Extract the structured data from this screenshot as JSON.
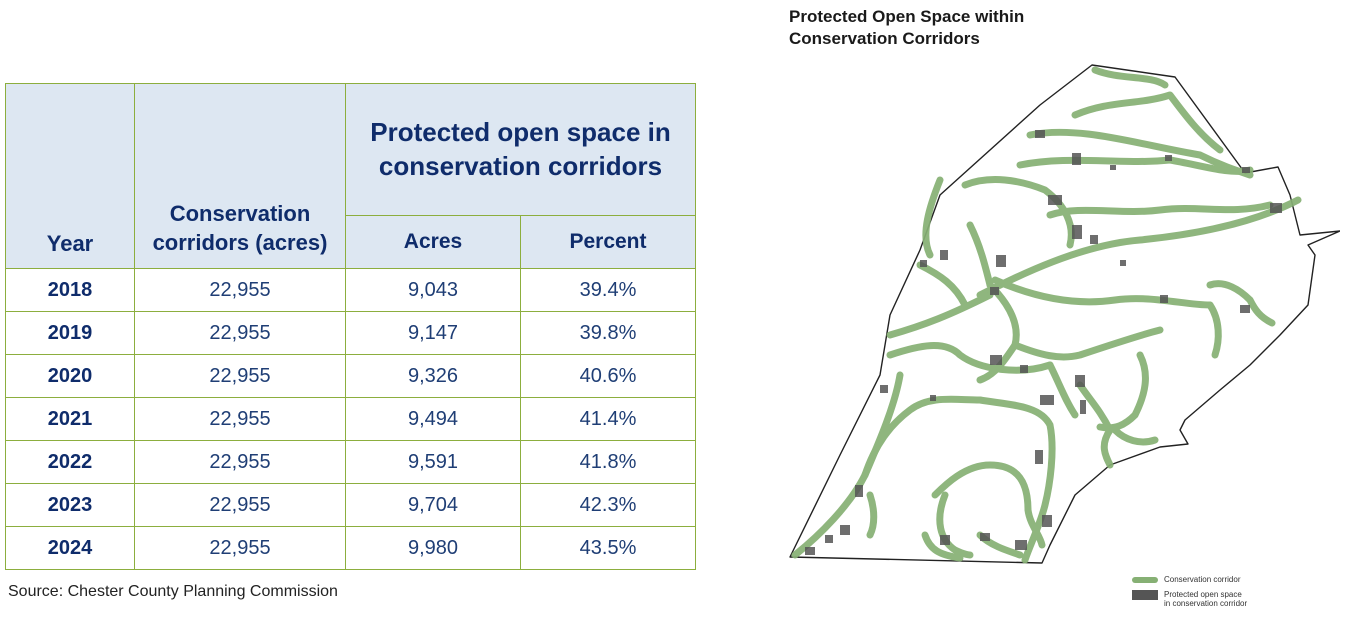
{
  "table": {
    "year_header": "Year",
    "corridors_header": "Conservation corridors (acres)",
    "group_header": "Protected open space in conservation corridors",
    "acres_header": "Acres",
    "percent_header": "Percent",
    "rows": [
      {
        "year": "2018",
        "corridors": "22,955",
        "acres": "9,043",
        "percent": "39.4%"
      },
      {
        "year": "2019",
        "corridors": "22,955",
        "acres": "9,147",
        "percent": "39.8%"
      },
      {
        "year": "2020",
        "corridors": "22,955",
        "acres": "9,326",
        "percent": "40.6%"
      },
      {
        "year": "2021",
        "corridors": "22,955",
        "acres": "9,494",
        "percent": "41.4%"
      },
      {
        "year": "2022",
        "corridors": "22,955",
        "acres": "9,591",
        "percent": "41.8%"
      },
      {
        "year": "2023",
        "corridors": "22,955",
        "acres": "9,704",
        "percent": "42.3%"
      },
      {
        "year": "2024",
        "corridors": "22,955",
        "acres": "9,980",
        "percent": "43.5%"
      }
    ]
  },
  "source": "Source: Chester County Planning Commission",
  "map": {
    "title_line1": "Protected Open Space within",
    "title_line2": "Conservation Corridors",
    "legend": {
      "corridor": "Conservation corridor",
      "protected_line1": "Protected open space",
      "protected_line2": "in conservation corridor"
    },
    "colors": {
      "corridor": "#86b074",
      "protected": "#555555",
      "boundary": "#222222"
    }
  },
  "chart_data": {
    "type": "table",
    "columns": [
      "Year",
      "Conservation corridors (acres)",
      "Protected open space in conservation corridors — Acres",
      "Protected open space in conservation corridors — Percent"
    ],
    "rows": [
      [
        "2018",
        22955,
        9043,
        39.4
      ],
      [
        "2019",
        22955,
        9147,
        39.8
      ],
      [
        "2020",
        22955,
        9326,
        40.6
      ],
      [
        "2021",
        22955,
        9494,
        41.4
      ],
      [
        "2022",
        22955,
        9591,
        41.8
      ],
      [
        "2023",
        22955,
        9704,
        42.3
      ],
      [
        "2024",
        22955,
        9980,
        43.5
      ]
    ]
  }
}
